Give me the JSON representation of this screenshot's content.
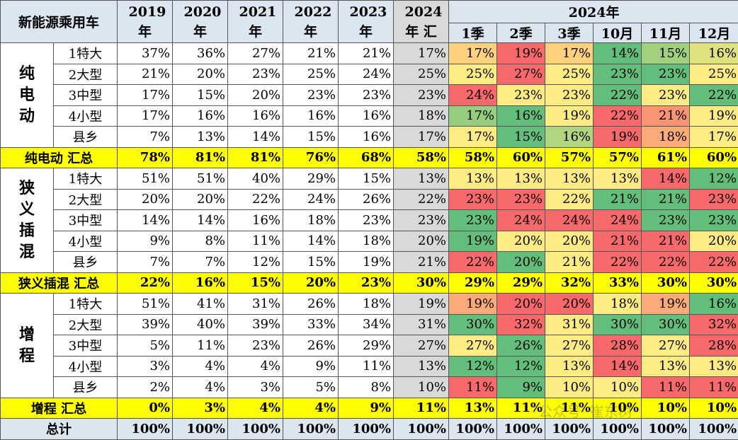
{
  "header": {
    "corner": "新能源乘用车",
    "years": [
      "2019年",
      "2020年",
      "2021年",
      "2022年",
      "2023年"
    ],
    "year_summary": "2024年 汇",
    "period_label": "2024年",
    "periods": [
      "1季",
      "2季",
      "3季",
      "10月",
      "11月",
      "12月"
    ]
  },
  "groups": [
    {
      "label": "纯电动",
      "rows": [
        {
          "name": "1特大",
          "values": [
            "37%",
            "36%",
            "27%",
            "21%",
            "21%",
            "17%",
            "17%",
            "19%",
            "17%",
            "14%",
            "15%",
            "16%"
          ]
        },
        {
          "name": "2大型",
          "values": [
            "21%",
            "20%",
            "23%",
            "25%",
            "24%",
            "25%",
            "25%",
            "27%",
            "25%",
            "23%",
            "23%",
            "25%"
          ]
        },
        {
          "name": "3中型",
          "values": [
            "17%",
            "15%",
            "20%",
            "23%",
            "23%",
            "23%",
            "24%",
            "23%",
            "23%",
            "22%",
            "23%",
            "22%"
          ]
        },
        {
          "name": "4小型",
          "values": [
            "17%",
            "16%",
            "16%",
            "16%",
            "16%",
            "18%",
            "17%",
            "16%",
            "19%",
            "22%",
            "21%",
            "19%"
          ]
        },
        {
          "name": "县乡",
          "values": [
            "7%",
            "13%",
            "14%",
            "15%",
            "16%",
            "17%",
            "17%",
            "15%",
            "16%",
            "19%",
            "18%",
            "17%"
          ]
        }
      ],
      "total": {
        "label": "纯电动 汇总",
        "values": [
          "78%",
          "81%",
          "81%",
          "76%",
          "68%",
          "58%",
          "58%",
          "60%",
          "57%",
          "57%",
          "61%",
          "60%"
        ]
      }
    },
    {
      "label": "狭义插混",
      "rows": [
        {
          "name": "1特大",
          "values": [
            "51%",
            "51%",
            "40%",
            "29%",
            "15%",
            "13%",
            "13%",
            "13%",
            "13%",
            "13%",
            "14%",
            "12%"
          ]
        },
        {
          "name": "2大型",
          "values": [
            "20%",
            "20%",
            "22%",
            "24%",
            "26%",
            "22%",
            "23%",
            "23%",
            "22%",
            "21%",
            "21%",
            "23%"
          ]
        },
        {
          "name": "3中型",
          "values": [
            "14%",
            "14%",
            "16%",
            "18%",
            "23%",
            "23%",
            "23%",
            "24%",
            "24%",
            "24%",
            "23%",
            "23%"
          ]
        },
        {
          "name": "4小型",
          "values": [
            "9%",
            "8%",
            "11%",
            "14%",
            "18%",
            "20%",
            "19%",
            "20%",
            "20%",
            "21%",
            "21%",
            "20%"
          ]
        },
        {
          "name": "县乡",
          "values": [
            "7%",
            "7%",
            "12%",
            "15%",
            "19%",
            "21%",
            "22%",
            "20%",
            "21%",
            "22%",
            "22%",
            "22%"
          ]
        }
      ],
      "total": {
        "label": "狭义插混 汇总",
        "values": [
          "22%",
          "16%",
          "15%",
          "20%",
          "23%",
          "30%",
          "29%",
          "29%",
          "32%",
          "33%",
          "30%",
          "30%"
        ]
      }
    },
    {
      "label": "增程",
      "rows": [
        {
          "name": "1特大",
          "values": [
            "51%",
            "41%",
            "31%",
            "26%",
            "18%",
            "19%",
            "19%",
            "20%",
            "20%",
            "18%",
            "19%",
            "16%"
          ]
        },
        {
          "name": "2大型",
          "values": [
            "39%",
            "40%",
            "39%",
            "33%",
            "34%",
            "31%",
            "30%",
            "32%",
            "31%",
            "30%",
            "30%",
            "32%"
          ]
        },
        {
          "name": "3中型",
          "values": [
            "5%",
            "11%",
            "23%",
            "26%",
            "29%",
            "27%",
            "27%",
            "26%",
            "27%",
            "28%",
            "27%",
            "28%"
          ]
        },
        {
          "name": "4小型",
          "values": [
            "3%",
            "4%",
            "4%",
            "9%",
            "11%",
            "13%",
            "12%",
            "12%",
            "13%",
            "14%",
            "13%",
            "13%"
          ]
        },
        {
          "name": "县乡",
          "values": [
            "2%",
            "4%",
            "3%",
            "5%",
            "8%",
            "10%",
            "11%",
            "9%",
            "10%",
            "10%",
            "11%",
            "11%"
          ]
        }
      ],
      "total": {
        "label": "增程 汇总",
        "values": [
          "0%",
          "3%",
          "4%",
          "4%",
          "9%",
          "11%",
          "13%",
          "11%",
          "11%",
          "10%",
          "10%",
          "10%"
        ]
      }
    }
  ],
  "grand_total": {
    "label": "总计",
    "values": [
      "100%",
      "100%",
      "100%",
      "100%",
      "100%",
      "100%",
      "100%",
      "100%",
      "100%",
      "100%",
      "100%",
      "100%"
    ]
  },
  "watermark": "公众号· 崔东树"
}
